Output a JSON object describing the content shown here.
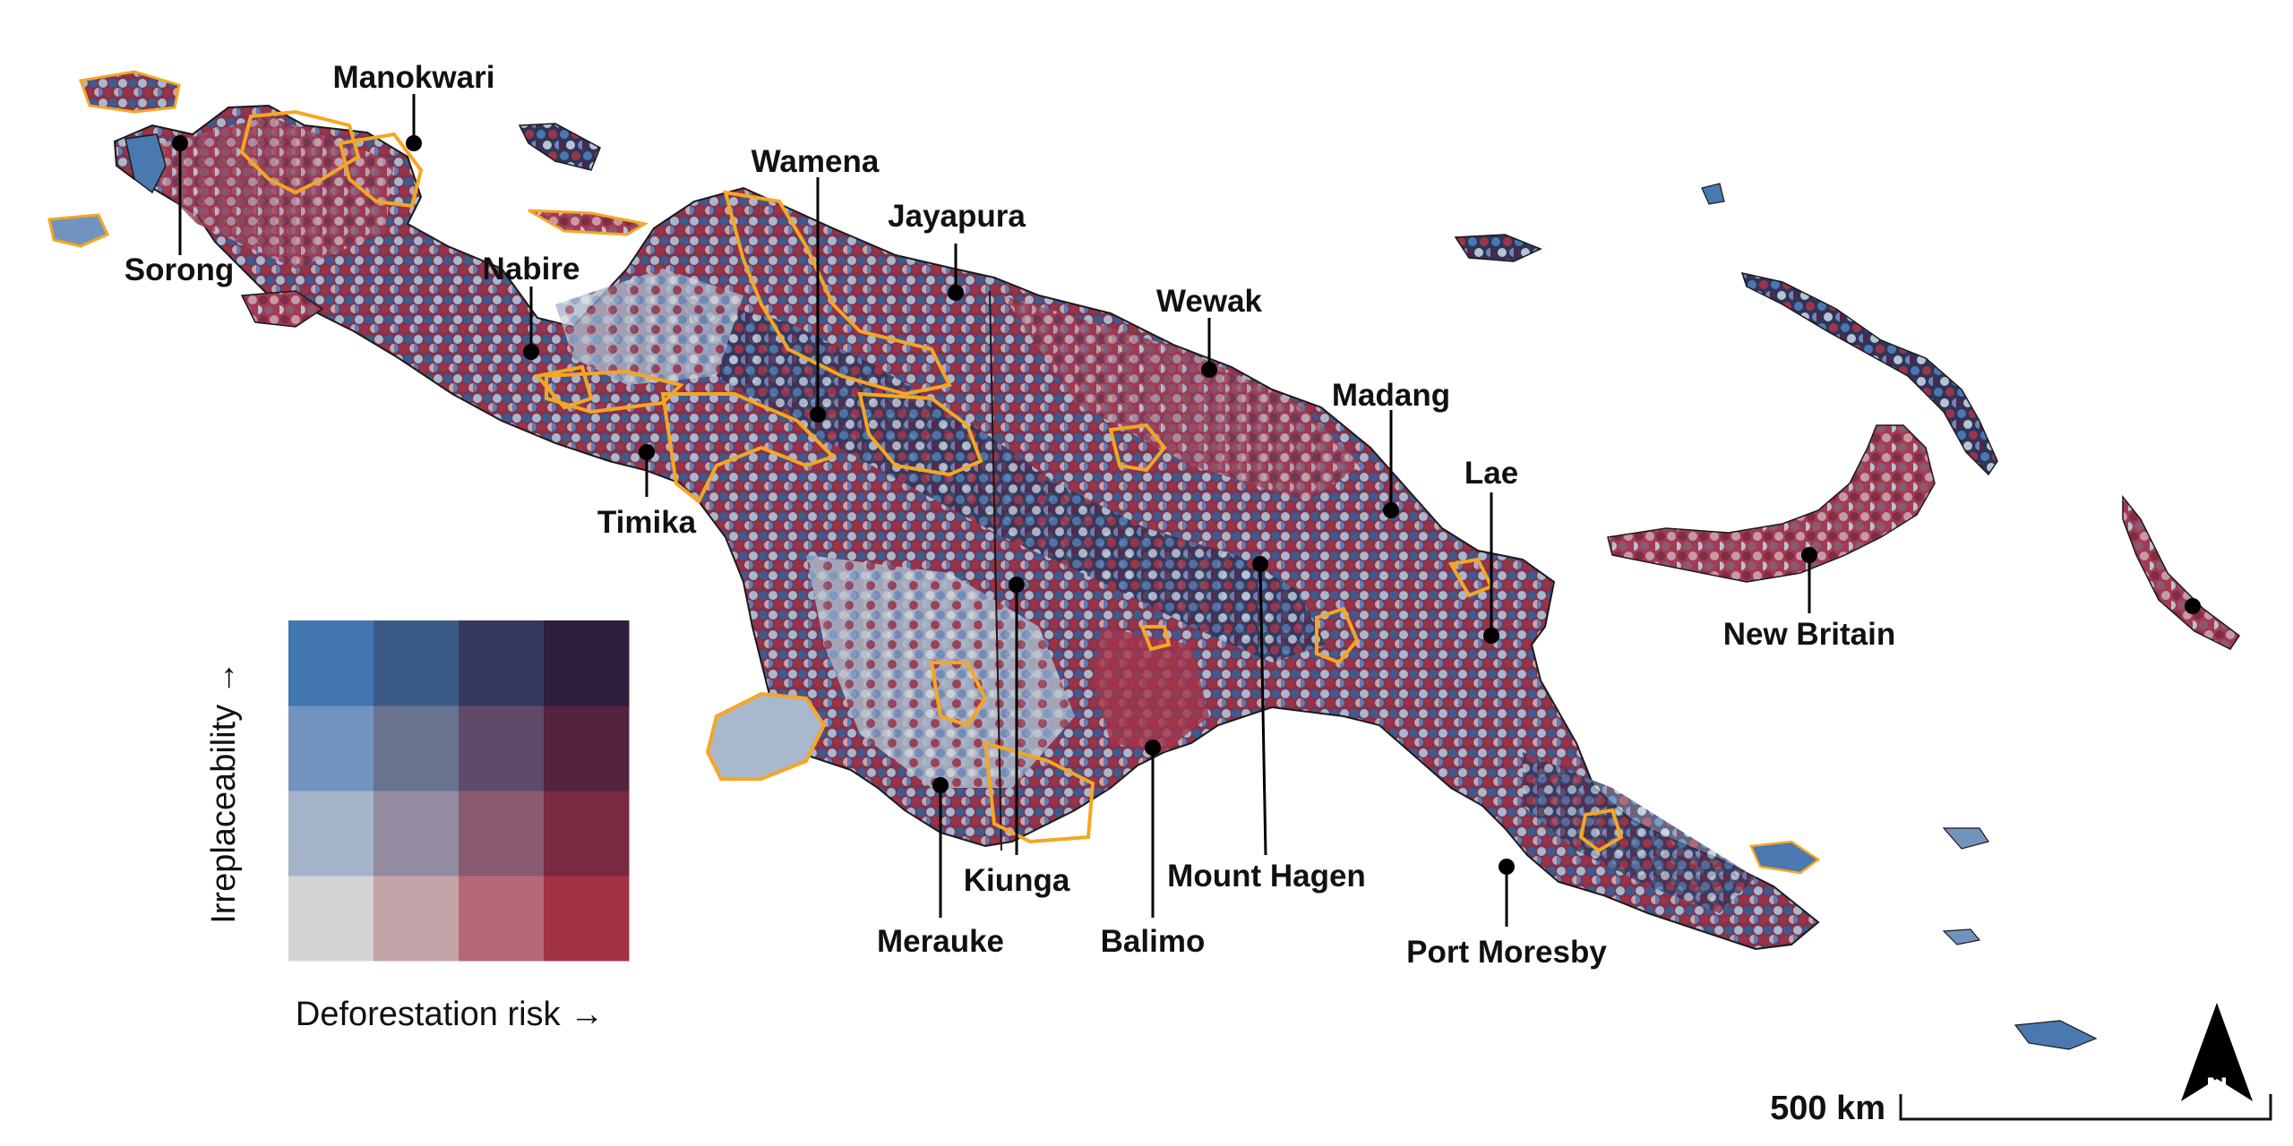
{
  "map": {
    "region": "New Guinea",
    "legend": {
      "x_axis_label": "Deforestation risk →",
      "y_axis_label": "Irreplaceability →",
      "bivariate_colors": [
        [
          "#d4d4d6",
          "#c4a3a9",
          "#b56877",
          "#a23344"
        ],
        [
          "#a4b3c8",
          "#938ba0",
          "#8a5b70",
          "#7a2a40"
        ],
        [
          "#7393bf",
          "#69728f",
          "#5f4a69",
          "#54233e"
        ],
        [
          "#4277b2",
          "#3c5a86",
          "#343a5f",
          "#2e1f3c"
        ]
      ]
    },
    "cities": [
      {
        "id": "sorong",
        "name": "Sorong"
      },
      {
        "id": "manokwari",
        "name": "Manokwari"
      },
      {
        "id": "nabire",
        "name": "Nabire"
      },
      {
        "id": "timika",
        "name": "Timika"
      },
      {
        "id": "wamena",
        "name": "Wamena"
      },
      {
        "id": "jayapura",
        "name": "Jayapura"
      },
      {
        "id": "wewak",
        "name": "Wewak"
      },
      {
        "id": "madang",
        "name": "Madang"
      },
      {
        "id": "lae",
        "name": "Lae"
      },
      {
        "id": "new-britain",
        "name": "New Britain"
      },
      {
        "id": "merauke",
        "name": "Merauke"
      },
      {
        "id": "kiunga",
        "name": "Kiunga"
      },
      {
        "id": "balimo",
        "name": "Balimo"
      },
      {
        "id": "mount-hagen",
        "name": "Mount Hagen"
      },
      {
        "id": "port-moresby",
        "name": "Port Moresby"
      }
    ],
    "scale_bar": {
      "label": "500 km"
    },
    "north_arrow": {
      "label": "N"
    },
    "colors": {
      "protected_area_outline": "#f5a623",
      "coastline": "#1a1a1a",
      "city_marker": "#000000"
    }
  }
}
